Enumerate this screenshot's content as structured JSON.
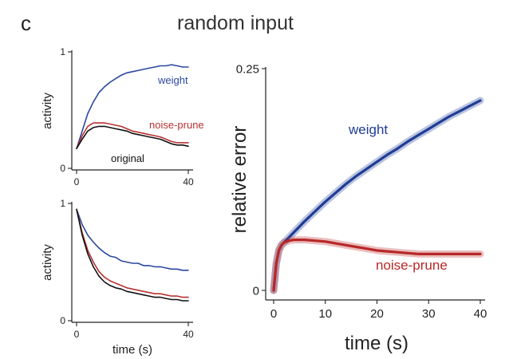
{
  "panel_letter": "c",
  "title": "random input",
  "chart_data": [
    {
      "type": "line",
      "ylabel": "activity",
      "xlabel": "",
      "xlim": [
        0,
        40
      ],
      "ylim": [
        0,
        1
      ],
      "x_ticks": [
        "0",
        "40"
      ],
      "y_ticks": [
        "0",
        "1"
      ],
      "series": [
        {
          "name": "weight",
          "color": "#2a48a0",
          "x": [
            0,
            2,
            4,
            6,
            8,
            10,
            12,
            14,
            16,
            18,
            20,
            22,
            24,
            26,
            28,
            30,
            32,
            34,
            36,
            38,
            40
          ],
          "y": [
            0.17,
            0.32,
            0.47,
            0.57,
            0.65,
            0.7,
            0.74,
            0.77,
            0.8,
            0.82,
            0.83,
            0.84,
            0.85,
            0.86,
            0.87,
            0.88,
            0.88,
            0.89,
            0.88,
            0.87,
            0.87
          ]
        },
        {
          "name": "noise-prune",
          "color": "#b83232",
          "x": [
            0,
            2,
            4,
            6,
            8,
            10,
            12,
            14,
            16,
            18,
            20,
            22,
            24,
            26,
            28,
            30,
            32,
            34,
            36,
            38,
            40
          ],
          "y": [
            0.17,
            0.28,
            0.36,
            0.39,
            0.39,
            0.39,
            0.38,
            0.37,
            0.36,
            0.34,
            0.32,
            0.31,
            0.3,
            0.29,
            0.28,
            0.27,
            0.25,
            0.23,
            0.22,
            0.22,
            0.22
          ]
        },
        {
          "name": "original",
          "color": "#111111",
          "x": [
            0,
            2,
            4,
            6,
            8,
            10,
            12,
            14,
            16,
            18,
            20,
            22,
            24,
            26,
            28,
            30,
            32,
            34,
            36,
            38,
            40
          ],
          "y": [
            0.17,
            0.25,
            0.32,
            0.35,
            0.36,
            0.36,
            0.35,
            0.34,
            0.33,
            0.32,
            0.3,
            0.29,
            0.28,
            0.27,
            0.26,
            0.25,
            0.23,
            0.21,
            0.2,
            0.2,
            0.19
          ]
        }
      ]
    },
    {
      "type": "line",
      "ylabel": "activity",
      "xlabel": "time (s)",
      "xlim": [
        0,
        40
      ],
      "ylim": [
        0,
        1
      ],
      "x_ticks": [
        "0",
        "40"
      ],
      "y_ticks": [
        "0",
        "1"
      ],
      "series": [
        {
          "color": "#2a48a0",
          "x": [
            0,
            2,
            4,
            6,
            8,
            10,
            12,
            14,
            16,
            18,
            20,
            22,
            24,
            26,
            28,
            30,
            32,
            34,
            36,
            38,
            40
          ],
          "y": [
            0.95,
            0.82,
            0.73,
            0.67,
            0.62,
            0.58,
            0.55,
            0.54,
            0.51,
            0.5,
            0.49,
            0.49,
            0.47,
            0.47,
            0.46,
            0.46,
            0.45,
            0.44,
            0.44,
            0.43,
            0.43
          ]
        },
        {
          "color": "#b83232",
          "x": [
            0,
            2,
            4,
            6,
            8,
            10,
            12,
            14,
            16,
            18,
            20,
            22,
            24,
            26,
            28,
            30,
            32,
            34,
            36,
            38,
            40
          ],
          "y": [
            0.95,
            0.75,
            0.6,
            0.5,
            0.42,
            0.37,
            0.34,
            0.32,
            0.3,
            0.28,
            0.27,
            0.26,
            0.25,
            0.24,
            0.23,
            0.23,
            0.22,
            0.21,
            0.21,
            0.2,
            0.2
          ]
        },
        {
          "color": "#111111",
          "x": [
            0,
            2,
            4,
            6,
            8,
            10,
            12,
            14,
            16,
            18,
            20,
            22,
            24,
            26,
            28,
            30,
            32,
            34,
            36,
            38,
            40
          ],
          "y": [
            0.95,
            0.73,
            0.57,
            0.46,
            0.38,
            0.33,
            0.3,
            0.28,
            0.27,
            0.25,
            0.24,
            0.23,
            0.22,
            0.21,
            0.2,
            0.2,
            0.19,
            0.18,
            0.18,
            0.17,
            0.17
          ]
        }
      ]
    },
    {
      "type": "line",
      "ylabel": "relative error",
      "xlabel": "time (s)",
      "xlim": [
        0,
        40
      ],
      "ylim": [
        0,
        0.25
      ],
      "x_ticks": [
        "0",
        "10",
        "20",
        "30",
        "40"
      ],
      "y_ticks": [
        "0",
        "0.25"
      ],
      "series": [
        {
          "name": "weight",
          "color": "#1f3c96",
          "x": [
            0,
            0.5,
            1,
            1.5,
            2,
            4,
            6,
            8,
            10,
            12,
            14,
            16,
            18,
            20,
            22,
            24,
            26,
            28,
            30,
            32,
            34,
            36,
            38,
            40
          ],
          "y": [
            0,
            0.03,
            0.045,
            0.051,
            0.054,
            0.066,
            0.078,
            0.089,
            0.1,
            0.11,
            0.12,
            0.129,
            0.137,
            0.145,
            0.153,
            0.16,
            0.168,
            0.175,
            0.182,
            0.189,
            0.196,
            0.202,
            0.208,
            0.214
          ]
        },
        {
          "name": "noise-prune",
          "color": "#b82828",
          "x": [
            0,
            0.5,
            1,
            1.5,
            2,
            3,
            4,
            6,
            8,
            10,
            12,
            14,
            16,
            18,
            20,
            22,
            24,
            26,
            28,
            30,
            32,
            34,
            36,
            38,
            40
          ],
          "y": [
            0,
            0.03,
            0.045,
            0.051,
            0.054,
            0.056,
            0.057,
            0.057,
            0.056,
            0.055,
            0.053,
            0.051,
            0.049,
            0.047,
            0.045,
            0.044,
            0.043,
            0.042,
            0.041,
            0.041,
            0.041,
            0.041,
            0.041,
            0.041,
            0.041
          ]
        }
      ]
    }
  ]
}
